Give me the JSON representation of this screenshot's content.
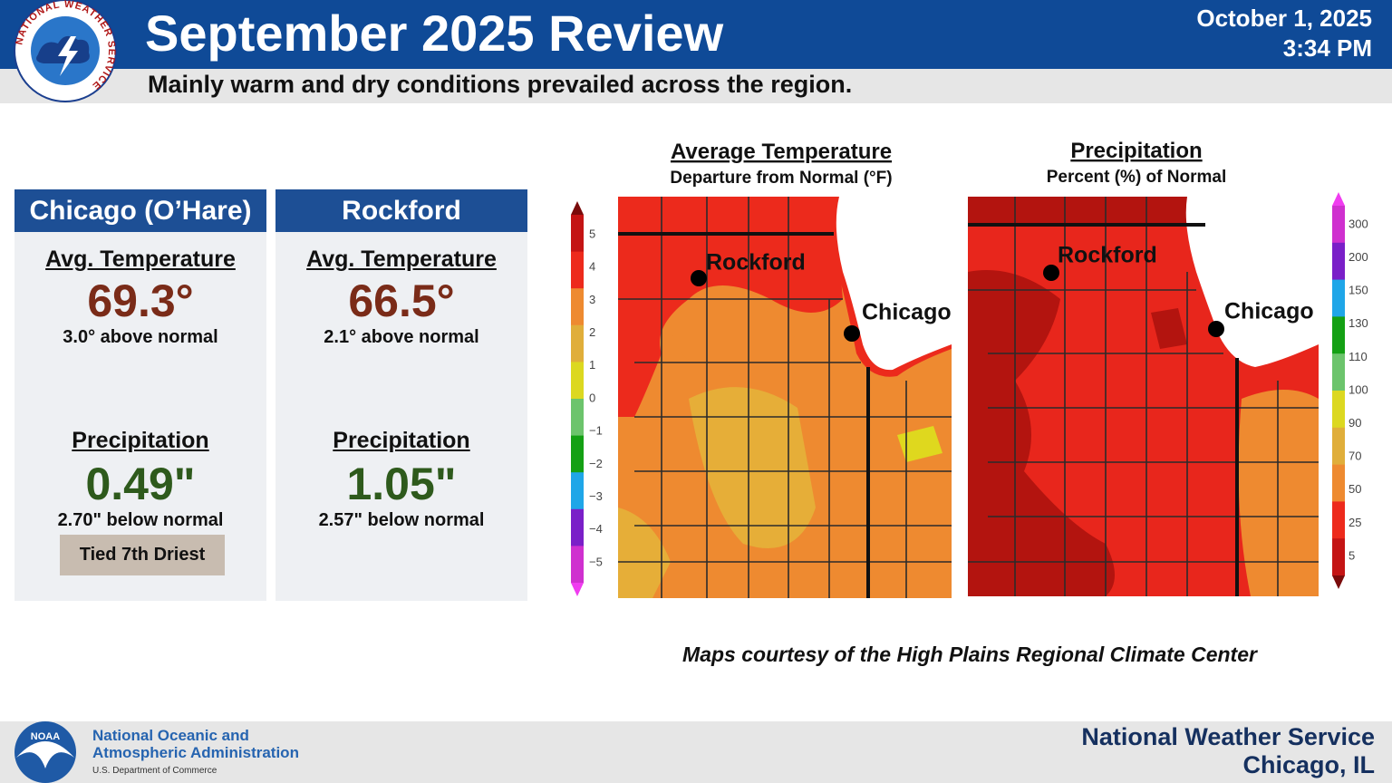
{
  "header": {
    "title": "September 2025 Review",
    "subtitle": "Mainly warm and dry conditions prevailed across the region.",
    "date": "October 1, 2025",
    "time": "3:34 PM"
  },
  "logo": {
    "text": "NATIONAL WEATHER SERVICE"
  },
  "stations": [
    {
      "name": "Chicago (O’Hare)",
      "temp_label": "Avg. Temperature",
      "temp": "69.3°",
      "temp_note": "3.0° above normal",
      "precip_label": "Precipitation",
      "precip": "0.49\"",
      "precip_note": "2.70\" below normal",
      "badge": "Tied 7th Driest"
    },
    {
      "name": "Rockford",
      "temp_label": "Avg. Temperature",
      "temp": "66.5°",
      "temp_note": "2.1° above normal",
      "precip_label": "Precipitation",
      "precip": "1.05\"",
      "precip_note": "2.57\" below normal"
    }
  ],
  "maps": [
    {
      "title": "Average Temperature",
      "subtitle": "Departure from Normal (°F)",
      "legend": [
        "5",
        "4",
        "3",
        "2",
        "1",
        "0",
        "−1",
        "−2",
        "−3",
        "−4",
        "−5"
      ],
      "cities": [
        "Rockford",
        "Chicago"
      ]
    },
    {
      "title": "Precipitation",
      "subtitle": "Percent (%) of Normal",
      "legend": [
        "300",
        "200",
        "150",
        "130",
        "110",
        "100",
        "90",
        "70",
        "50",
        "25",
        "5"
      ],
      "cities": [
        "Rockford",
        "Chicago"
      ]
    }
  ],
  "credit": "Maps courtesy of the High Plains Regional Climate Center",
  "footer": {
    "noaa_logo": "NOAA",
    "noaa_line1": "National Oceanic and",
    "noaa_line2": "Atmospheric Administration",
    "noaa_sub": "U.S. Department of Commerce",
    "nws": "National Weather Service",
    "location": "Chicago, IL"
  }
}
